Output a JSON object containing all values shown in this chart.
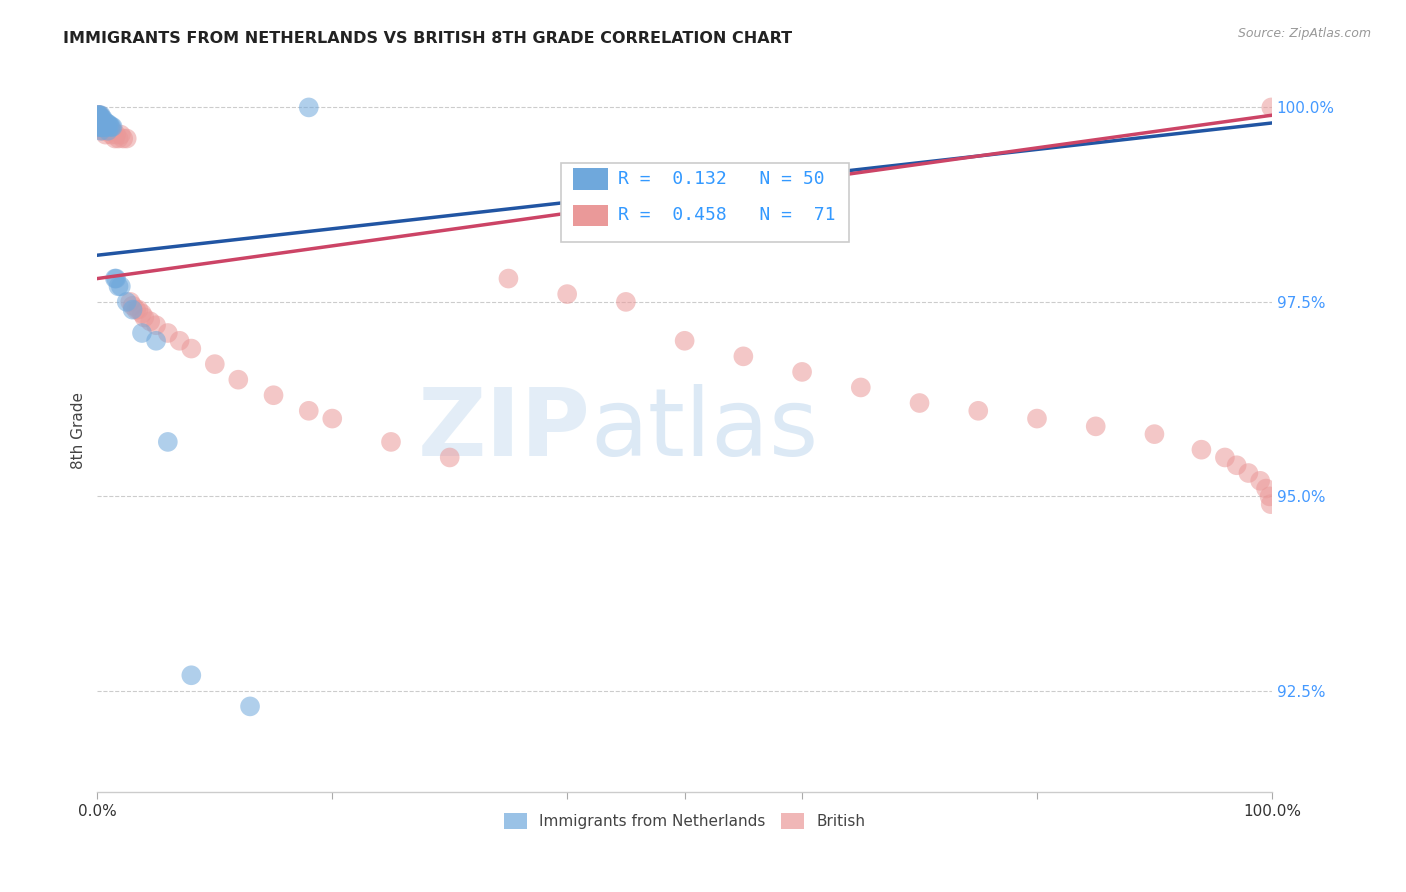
{
  "title": "IMMIGRANTS FROM NETHERLANDS VS BRITISH 8TH GRADE CORRELATION CHART",
  "source": "Source: ZipAtlas.com",
  "ylabel": "8th Grade",
  "ylabel_right_ticks": [
    "100.0%",
    "97.5%",
    "95.0%",
    "92.5%"
  ],
  "ylabel_right_values": [
    1.0,
    0.975,
    0.95,
    0.925
  ],
  "legend_label_blue": "Immigrants from Netherlands",
  "legend_label_pink": "British",
  "blue_R": "0.132",
  "blue_N": "50",
  "pink_R": "0.458",
  "pink_N": "71",
  "blue_color": "#6fa8dc",
  "pink_color": "#ea9999",
  "blue_line_color": "#2155a3",
  "pink_line_color": "#cc4466",
  "watermark_ZIP": "ZIP",
  "watermark_atlas": "atlas",
  "xlim": [
    0.0,
    1.0
  ],
  "ylim": [
    0.912,
    1.005
  ],
  "blue_scatter_x": [
    0.0005,
    0.0007,
    0.001,
    0.001,
    0.001,
    0.0012,
    0.0015,
    0.0015,
    0.002,
    0.002,
    0.002,
    0.002,
    0.0025,
    0.003,
    0.003,
    0.003,
    0.003,
    0.003,
    0.0035,
    0.004,
    0.004,
    0.004,
    0.0045,
    0.005,
    0.005,
    0.005,
    0.006,
    0.006,
    0.007,
    0.007,
    0.008,
    0.008,
    0.009,
    0.009,
    0.01,
    0.011,
    0.012,
    0.013,
    0.015,
    0.016,
    0.018,
    0.02,
    0.025,
    0.03,
    0.038,
    0.05,
    0.06,
    0.08,
    0.13,
    0.18
  ],
  "blue_scatter_y": [
    0.9985,
    0.999,
    0.999,
    0.9985,
    0.9975,
    0.999,
    0.9985,
    0.9975,
    0.999,
    0.9985,
    0.998,
    0.9975,
    0.9985,
    0.999,
    0.9985,
    0.998,
    0.9975,
    0.997,
    0.998,
    0.9985,
    0.998,
    0.9975,
    0.998,
    0.9985,
    0.998,
    0.9975,
    0.998,
    0.9975,
    0.998,
    0.9975,
    0.998,
    0.9975,
    0.9978,
    0.997,
    0.9978,
    0.9975,
    0.9975,
    0.9975,
    0.978,
    0.978,
    0.977,
    0.977,
    0.975,
    0.974,
    0.971,
    0.97,
    0.957,
    0.927,
    0.923,
    1.0
  ],
  "pink_scatter_x": [
    0.0005,
    0.0007,
    0.001,
    0.001,
    0.001,
    0.0015,
    0.002,
    0.002,
    0.002,
    0.003,
    0.003,
    0.003,
    0.004,
    0.004,
    0.005,
    0.005,
    0.006,
    0.006,
    0.007,
    0.007,
    0.008,
    0.009,
    0.01,
    0.011,
    0.012,
    0.013,
    0.015,
    0.016,
    0.018,
    0.02,
    0.022,
    0.025,
    0.028,
    0.03,
    0.033,
    0.035,
    0.038,
    0.04,
    0.045,
    0.05,
    0.06,
    0.07,
    0.08,
    0.1,
    0.12,
    0.15,
    0.18,
    0.2,
    0.25,
    0.3,
    0.35,
    0.4,
    0.45,
    0.5,
    0.55,
    0.6,
    0.65,
    0.7,
    0.75,
    0.8,
    0.85,
    0.9,
    0.94,
    0.96,
    0.97,
    0.98,
    0.99,
    0.995,
    0.998,
    0.999,
    0.9995
  ],
  "pink_scatter_y": [
    0.999,
    0.9985,
    0.999,
    0.9985,
    0.998,
    0.9985,
    0.999,
    0.9985,
    0.9975,
    0.9985,
    0.998,
    0.9975,
    0.998,
    0.997,
    0.998,
    0.9975,
    0.998,
    0.997,
    0.9975,
    0.9965,
    0.9975,
    0.997,
    0.9975,
    0.997,
    0.9965,
    0.997,
    0.996,
    0.9965,
    0.996,
    0.9965,
    0.996,
    0.996,
    0.975,
    0.9745,
    0.974,
    0.974,
    0.9735,
    0.973,
    0.9725,
    0.972,
    0.971,
    0.97,
    0.969,
    0.967,
    0.965,
    0.963,
    0.961,
    0.96,
    0.957,
    0.955,
    0.978,
    0.976,
    0.975,
    0.97,
    0.968,
    0.966,
    0.964,
    0.962,
    0.961,
    0.96,
    0.959,
    0.958,
    0.956,
    0.955,
    0.954,
    0.953,
    0.952,
    0.951,
    0.95,
    0.949,
    1.0
  ],
  "blue_line_x0": 0.0,
  "blue_line_x1": 1.0,
  "blue_line_y0": 0.981,
  "blue_line_y1": 0.998,
  "pink_line_x0": 0.0,
  "pink_line_x1": 1.0,
  "pink_line_y0": 0.978,
  "pink_line_y1": 0.999,
  "grid_color": "#cccccc",
  "background_color": "#ffffff"
}
